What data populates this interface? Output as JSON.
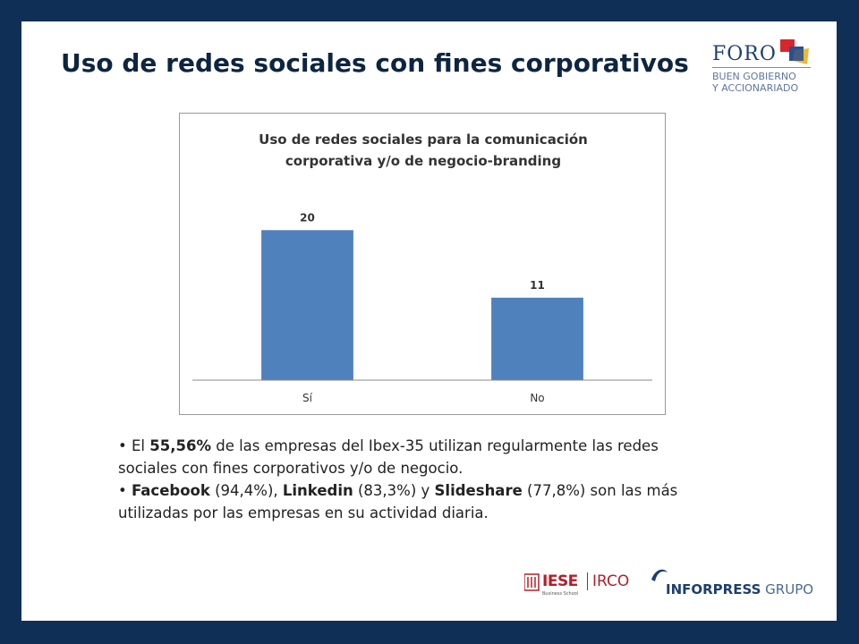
{
  "slide": {
    "title": "Uso de redes sociales con fines corporativos"
  },
  "header_logo": {
    "name": "FORO",
    "subtitle_line1": "BUEN GOBIERNO",
    "subtitle_line2": "Y ACCIONARIADO",
    "icon": "foro-squares-icon",
    "colors": {
      "red": "#d8262e",
      "blue": "#2b4f8f",
      "yellow": "#e9b21b"
    }
  },
  "chart_data": {
    "type": "bar",
    "title": "Uso de redes sociales para la comunicación corporativa y/o de negocio-branding",
    "title_lines": [
      "Uso de redes sociales para la comunicación",
      "corporativa y/o de negocio-branding"
    ],
    "categories": [
      "Sí",
      "No"
    ],
    "values": [
      20,
      11
    ],
    "data_labels": [
      "20",
      "11"
    ],
    "ylim": [
      0,
      26
    ],
    "bar_color": "#4f81bd",
    "grid": false,
    "legend": "none"
  },
  "bullets": [
    {
      "parts": [
        {
          "text": "El ",
          "bold": false
        },
        {
          "text": "55,56%",
          "bold": true
        },
        {
          "text": " de las empresas del Ibex-35 utilizan regularmente las redes sociales con fines corporativos y/o de negocio.",
          "bold": false
        }
      ]
    },
    {
      "parts": [
        {
          "text": "Facebook",
          "bold": true
        },
        {
          "text": " (94,4%), ",
          "bold": false
        },
        {
          "text": "Linkedin",
          "bold": true
        },
        {
          "text": " (83,3%) y ",
          "bold": false
        },
        {
          "text": "Slideshare",
          "bold": true
        },
        {
          "text": " (77,8%) son las más utilizadas por las empresas en su actividad diaria.",
          "bold": false
        }
      ]
    }
  ],
  "footer_logos": {
    "iese": "IESE",
    "iese_sub": "Business School",
    "irco": "IRCO",
    "inforpress_strong": "INFORPRESS",
    "inforpress_light": " GRUPO",
    "iese_icon": "iese-crest-icon",
    "inforpress_icon": "inforpress-swoosh-icon"
  }
}
